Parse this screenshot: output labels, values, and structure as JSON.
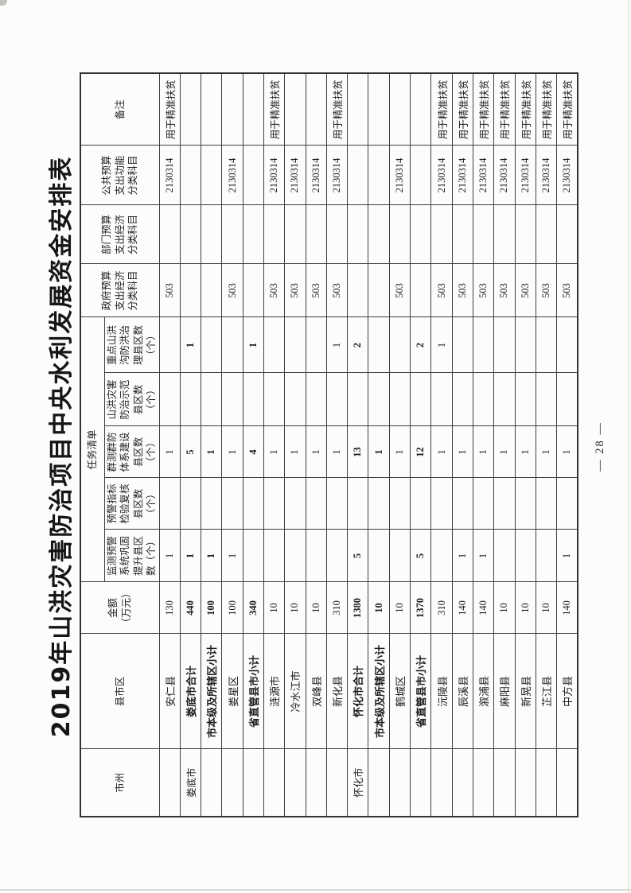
{
  "page": {
    "title": "2019年山洪灾害防治项目中央水利发展资金安排表",
    "page_number": "— 28 —"
  },
  "table": {
    "group_header": "任务清单",
    "headers": {
      "shizhou": "市州",
      "county": "县市区",
      "amount": "金额\n（万元）",
      "task_monitor": "监测预警\n系统巩固\n提升县区\n数（个）",
      "task_indicator": "预警指标\n检验复核\n县区数\n（个）",
      "task_mass": "群测群防\n体系建设\n县区数\n（个）",
      "task_demo": "山洪灾害\n防治示范\n县区数\n（个）",
      "task_gully": "重点山洪\n沟防洪治\n理县区数\n（个）",
      "gov_code": "政府预算\n支出经济\n分类科目",
      "dept_code": "部门预算\n支出经济\n分类科目",
      "public_code": "公共预算\n支出功能\n分类科目",
      "remark": "备注"
    },
    "field_names": [
      "shizhou",
      "county",
      "amount",
      "task_monitor",
      "task_indicator",
      "task_mass",
      "task_demo",
      "task_gully",
      "gov_code",
      "dept_code",
      "public_code",
      "remark"
    ],
    "rows": [
      {
        "bold": false,
        "cells": [
          "",
          "安仁县",
          "130",
          "1",
          "",
          "1",
          "",
          "",
          "503",
          "",
          "2130314",
          "用于精准扶贫"
        ]
      },
      {
        "bold": true,
        "cells": [
          "娄底市",
          "娄底市合计",
          "440",
          "1",
          "",
          "5",
          "",
          "1",
          "",
          "",
          "",
          ""
        ]
      },
      {
        "bold": true,
        "cells": [
          "",
          "市本级及所辖区小计",
          "100",
          "1",
          "",
          "1",
          "",
          "",
          "",
          "",
          "",
          ""
        ]
      },
      {
        "bold": false,
        "cells": [
          "",
          "娄星区",
          "100",
          "1",
          "",
          "1",
          "",
          "",
          "503",
          "",
          "2130314",
          ""
        ]
      },
      {
        "bold": true,
        "cells": [
          "",
          "省直管县市小计",
          "340",
          "",
          "",
          "4",
          "",
          "1",
          "",
          "",
          "",
          ""
        ]
      },
      {
        "bold": false,
        "cells": [
          "",
          "涟源市",
          "10",
          "",
          "",
          "1",
          "",
          "",
          "503",
          "",
          "2130314",
          "用于精准扶贫"
        ]
      },
      {
        "bold": false,
        "cells": [
          "",
          "冷水江市",
          "10",
          "",
          "",
          "1",
          "",
          "",
          "503",
          "",
          "2130314",
          ""
        ]
      },
      {
        "bold": false,
        "cells": [
          "",
          "双峰县",
          "10",
          "",
          "",
          "1",
          "",
          "",
          "503",
          "",
          "2130314",
          ""
        ]
      },
      {
        "bold": false,
        "cells": [
          "",
          "新化县",
          "310",
          "",
          "",
          "1",
          "",
          "1",
          "503",
          "",
          "2130314",
          "用于精准扶贫"
        ]
      },
      {
        "bold": true,
        "cells": [
          "怀化市",
          "怀化市合计",
          "1380",
          "5",
          "",
          "13",
          "",
          "2",
          "",
          "",
          "",
          ""
        ]
      },
      {
        "bold": true,
        "cells": [
          "",
          "市本级及所辖区小计",
          "10",
          "",
          "",
          "1",
          "",
          "",
          "",
          "",
          "",
          ""
        ]
      },
      {
        "bold": false,
        "cells": [
          "",
          "鹤城区",
          "10",
          "",
          "",
          "1",
          "",
          "",
          "503",
          "",
          "2130314",
          ""
        ]
      },
      {
        "bold": true,
        "cells": [
          "",
          "省直管县市小计",
          "1370",
          "5",
          "",
          "12",
          "",
          "2",
          "",
          "",
          "",
          ""
        ]
      },
      {
        "bold": false,
        "cells": [
          "",
          "沅陵县",
          "310",
          "",
          "",
          "1",
          "",
          "1",
          "503",
          "",
          "2130314",
          "用于精准扶贫"
        ]
      },
      {
        "bold": false,
        "cells": [
          "",
          "辰溪县",
          "140",
          "1",
          "",
          "1",
          "",
          "",
          "503",
          "",
          "2130314",
          "用于精准扶贫"
        ]
      },
      {
        "bold": false,
        "cells": [
          "",
          "溆浦县",
          "140",
          "1",
          "",
          "1",
          "",
          "",
          "503",
          "",
          "2130314",
          "用于精准扶贫"
        ]
      },
      {
        "bold": false,
        "cells": [
          "",
          "麻阳县",
          "10",
          "",
          "",
          "1",
          "",
          "",
          "503",
          "",
          "2130314",
          "用于精准扶贫"
        ]
      },
      {
        "bold": false,
        "cells": [
          "",
          "新晃县",
          "10",
          "",
          "",
          "1",
          "",
          "",
          "503",
          "",
          "2130314",
          "用于精准扶贫"
        ]
      },
      {
        "bold": false,
        "cells": [
          "",
          "芷江县",
          "10",
          "",
          "",
          "1",
          "",
          "",
          "503",
          "",
          "2130314",
          "用于精准扶贫"
        ]
      },
      {
        "bold": false,
        "cells": [
          "",
          "中方县",
          "140",
          "1",
          "",
          "1",
          "",
          "",
          "503",
          "",
          "2130314",
          "用于精准扶贫"
        ]
      }
    ]
  },
  "colors": {
    "text": "#1e1e1e",
    "border": "#3f3f3f",
    "paper": "#fcfcfa"
  }
}
